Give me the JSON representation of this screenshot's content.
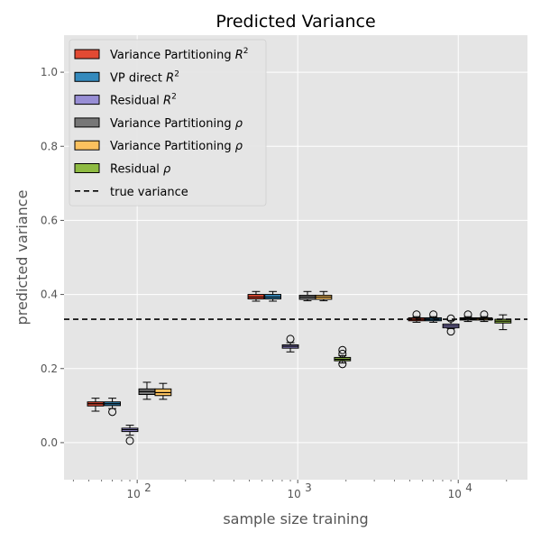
{
  "chart_data": {
    "type": "box",
    "title": "Predicted Variance",
    "xlabel": "sample size training",
    "ylabel": "predicted variance",
    "x_scale": "log",
    "x_ticks": [
      "10",
      "10",
      "10"
    ],
    "x_tick_exponents": [
      "2",
      "3",
      "4"
    ],
    "y_ticks": [
      "0.0",
      "0.2",
      "0.4",
      "0.6",
      "0.8",
      "1.0"
    ],
    "ylim": [
      -0.1,
      1.1
    ],
    "xlim": [
      35,
      27000
    ],
    "grid": true,
    "legend_position": "top-left",
    "true_variance": 0.333,
    "groups": [
      {
        "sample_size": 100
      },
      {
        "sample_size": 1000
      },
      {
        "sample_size": 10000
      }
    ],
    "series": [
      {
        "name": "Variance Partitioning $R^2$",
        "label_main": "Variance Partitioning ",
        "label_italic": "R",
        "label_sup": "2",
        "color": "#E24A33",
        "boxes": [
          {
            "x": 55,
            "whislo": 0.085,
            "q1": 0.099,
            "med": 0.105,
            "q3": 0.11,
            "whishi": 0.12,
            "fliers": []
          },
          {
            "x": 550,
            "whislo": 0.382,
            "q1": 0.388,
            "med": 0.393,
            "q3": 0.4,
            "whishi": 0.408,
            "fliers": []
          },
          {
            "x": 5500,
            "whislo": 0.325,
            "q1": 0.329,
            "med": 0.333,
            "q3": 0.337,
            "whishi": 0.34,
            "fliers": [
              0.346
            ]
          }
        ]
      },
      {
        "name": "VP direct $R^2$",
        "label_main": "VP direct ",
        "label_italic": "R",
        "label_sup": "2",
        "color": "#348ABD",
        "boxes": [
          {
            "x": 70,
            "whislo": 0.092,
            "q1": 0.1,
            "med": 0.105,
            "q3": 0.11,
            "whishi": 0.12,
            "fliers": [
              0.083
            ]
          },
          {
            "x": 700,
            "whislo": 0.382,
            "q1": 0.388,
            "med": 0.393,
            "q3": 0.4,
            "whishi": 0.408,
            "fliers": []
          },
          {
            "x": 7000,
            "whislo": 0.325,
            "q1": 0.329,
            "med": 0.333,
            "q3": 0.337,
            "whishi": 0.34,
            "fliers": [
              0.346
            ]
          }
        ]
      },
      {
        "name": "Residual $R^2$",
        "label_main": "Residual ",
        "label_italic": "R",
        "label_sup": "2",
        "color": "#988ED5",
        "boxes": [
          {
            "x": 90,
            "whislo": 0.02,
            "q1": 0.03,
            "med": 0.035,
            "q3": 0.039,
            "whishi": 0.047,
            "fliers": [
              0.005
            ]
          },
          {
            "x": 900,
            "whislo": 0.245,
            "q1": 0.255,
            "med": 0.26,
            "q3": 0.264,
            "whishi": 0.27,
            "fliers": [
              0.28
            ]
          },
          {
            "x": 9000,
            "whislo": 0.308,
            "q1": 0.31,
            "med": 0.315,
            "q3": 0.32,
            "whishi": 0.33,
            "fliers": [
              0.3,
              0.335
            ]
          }
        ]
      },
      {
        "name": "Variance Partitioning $\\rho$",
        "label_main": "Variance Partitioning ",
        "label_italic": "ρ",
        "label_sup": "",
        "color": "#777777",
        "boxes": [
          {
            "x": 115,
            "whislo": 0.117,
            "q1": 0.13,
            "med": 0.138,
            "q3": 0.145,
            "whishi": 0.163,
            "fliers": []
          },
          {
            "x": 1150,
            "whislo": 0.383,
            "q1": 0.387,
            "med": 0.393,
            "q3": 0.398,
            "whishi": 0.408,
            "fliers": []
          },
          {
            "x": 11500,
            "whislo": 0.327,
            "q1": 0.331,
            "med": 0.334,
            "q3": 0.337,
            "whishi": 0.34,
            "fliers": [
              0.346
            ]
          }
        ]
      },
      {
        "name": "Variance Partitioning $\\rho$",
        "label_main": "Variance Partitioning ",
        "label_italic": "ρ",
        "label_sup": "",
        "color": "#FBC15E",
        "boxes": [
          {
            "x": 145,
            "whislo": 0.117,
            "q1": 0.127,
            "med": 0.135,
            "q3": 0.145,
            "whishi": 0.16,
            "fliers": []
          },
          {
            "x": 1450,
            "whislo": 0.383,
            "q1": 0.387,
            "med": 0.393,
            "q3": 0.398,
            "whishi": 0.408,
            "fliers": []
          },
          {
            "x": 14500,
            "whislo": 0.327,
            "q1": 0.331,
            "med": 0.334,
            "q3": 0.337,
            "whishi": 0.34,
            "fliers": [
              0.346
            ]
          }
        ]
      },
      {
        "name": "Residual $\\rho$",
        "label_main": "Residual ",
        "label_italic": "ρ",
        "label_sup": "",
        "color": "#8EBA42",
        "boxes": [
          {
            "x": 1900,
            "whislo": 0.215,
            "q1": 0.221,
            "med": 0.225,
            "q3": 0.23,
            "whishi": 0.235,
            "fliers": [
              0.212,
              0.24,
              0.25
            ]
          },
          {
            "x": 19000,
            "whislo": 0.305,
            "q1": 0.323,
            "med": 0.328,
            "q3": 0.333,
            "whishi": 0.345,
            "fliers": []
          }
        ]
      }
    ],
    "reference_line": {
      "name": "true variance",
      "value": 0.333
    }
  }
}
